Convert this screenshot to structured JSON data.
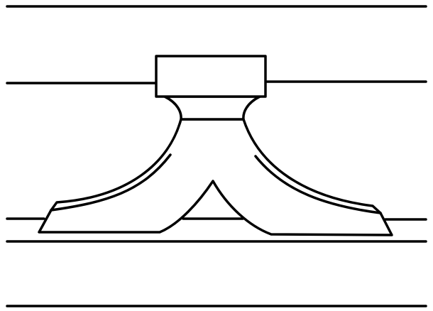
{
  "diagram": {
    "type": "line-drawing",
    "description_text": "",
    "colors": {
      "stroke": "#000000",
      "background": "#ffffff"
    },
    "components": [
      "top-horizontal-line",
      "upper-horizontal-line",
      "lower-horizontal-line-a",
      "lower-horizontal-line-b",
      "bottom-horizontal-line",
      "top-block",
      "neck",
      "flared-base",
      "center-arch"
    ]
  }
}
